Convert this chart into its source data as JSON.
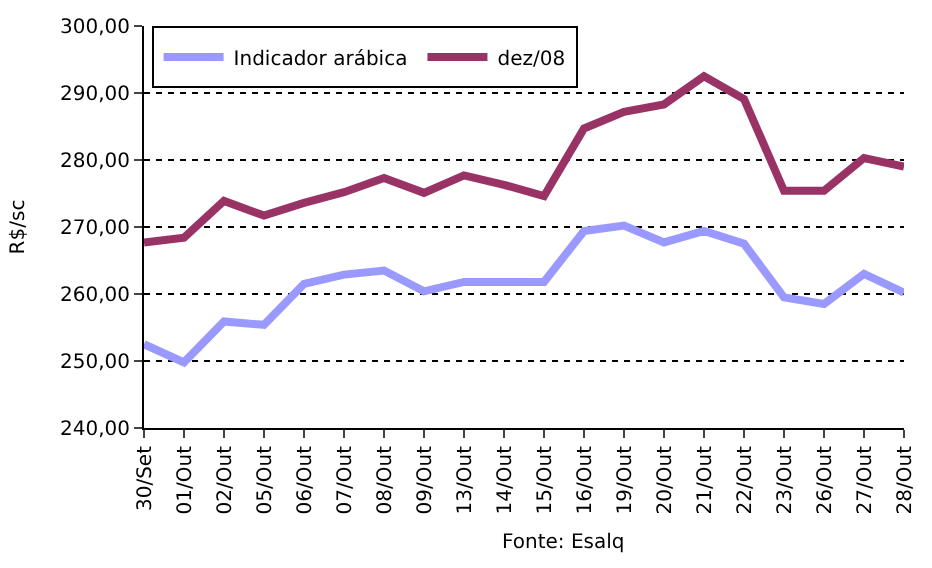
{
  "chart_data": {
    "type": "line",
    "ylabel": "R$/sc",
    "categories": [
      "30/Set",
      "01/Out",
      "02/Out",
      "05/Out",
      "06/Out",
      "07/Out",
      "08/Out",
      "09/Out",
      "13/Out",
      "14/Out",
      "15/Out",
      "16/Out",
      "19/Out",
      "20/Out",
      "21/Out",
      "22/Out",
      "23/Out",
      "26/Out",
      "27/Out",
      "28/Out"
    ],
    "series": [
      {
        "name": "Indicador arábica",
        "color": "#9999ff",
        "values": [
          252.5,
          249.8,
          255.9,
          255.4,
          261.5,
          262.9,
          263.5,
          260.4,
          261.8,
          261.8,
          261.8,
          269.4,
          270.2,
          267.7,
          269.4,
          267.5,
          259.5,
          258.5,
          263.0,
          260.2
        ]
      },
      {
        "name": "dez/08",
        "color": "#993366",
        "values": [
          267.7,
          268.4,
          273.9,
          271.7,
          273.6,
          275.2,
          277.3,
          275.1,
          277.7,
          276.3,
          274.6,
          284.7,
          287.2,
          288.3,
          292.5,
          289.1,
          275.4,
          275.4,
          280.3,
          279.0
        ]
      }
    ],
    "ylim": [
      240,
      300
    ],
    "yticks": [
      {
        "value": 240,
        "label": "240,00"
      },
      {
        "value": 250,
        "label": "250,00"
      },
      {
        "value": 260,
        "label": "260,00"
      },
      {
        "value": 270,
        "label": "270,00"
      },
      {
        "value": 280,
        "label": "280,00"
      },
      {
        "value": 290,
        "label": "290,00"
      },
      {
        "value": 300,
        "label": "300,00"
      }
    ],
    "grid": "y",
    "legend": "top left",
    "marker": "none",
    "line_style": "solid",
    "annotations": [
      "Fonte: Esalq"
    ]
  }
}
